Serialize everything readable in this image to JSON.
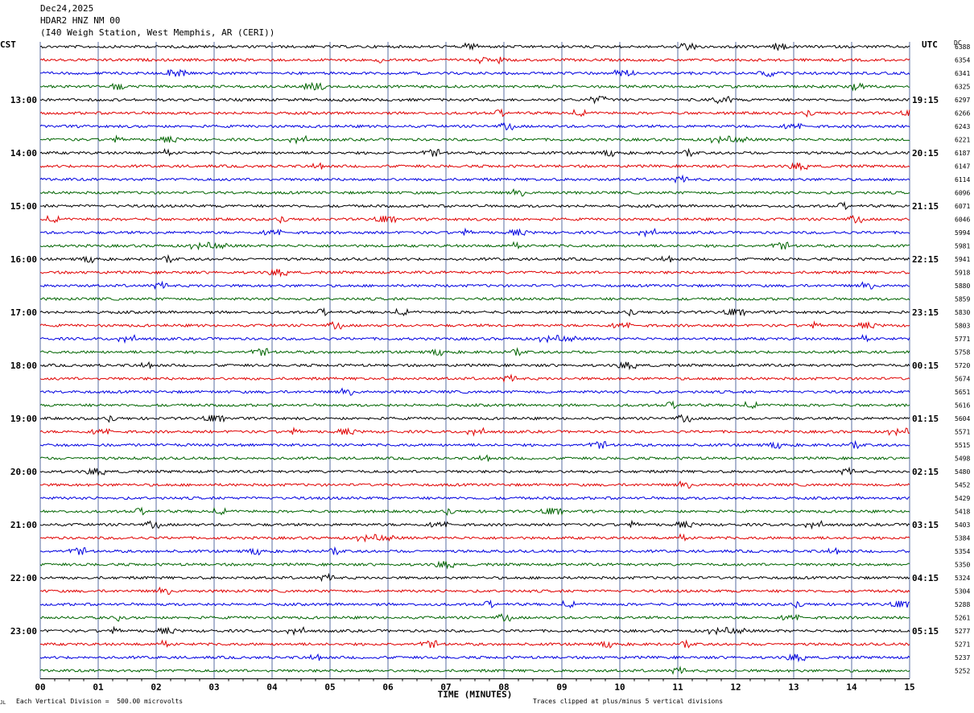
{
  "header": {
    "date": "Dec24,2025",
    "station": "HDAR2 HNZ NM 00",
    "location": "(I40 Weigh Station, West Memphis, AR (CERI))"
  },
  "left_tz": "CST",
  "right_tz": "UTC",
  "dc_label": "DC",
  "footer": {
    "scale_note": "Each Vertical Division =  500.00 microvolts",
    "clip_note": "Traces clipped at plus/minus 5 vertical divisions",
    "corner_mark": "JL"
  },
  "colors": {
    "trace_cycle": [
      "#000000",
      "#e00000",
      "#0000e0",
      "#006400"
    ],
    "grid": "#5a6ea0",
    "background": "#ffffff"
  },
  "chart_data": {
    "type": "line",
    "title": "HDAR2 HNZ NM 00",
    "xlabel": "TIME (MINUTES)",
    "x_ticks": [
      "00",
      "01",
      "02",
      "03",
      "04",
      "05",
      "06",
      "07",
      "08",
      "09",
      "10",
      "11",
      "12",
      "13",
      "14",
      "15"
    ],
    "xlim": [
      0,
      15
    ],
    "grid": true,
    "num_traces": 48,
    "left_hour_labels": [
      {
        "row": 4,
        "label": "13:00"
      },
      {
        "row": 8,
        "label": "14:00"
      },
      {
        "row": 12,
        "label": "15:00"
      },
      {
        "row": 16,
        "label": "16:00"
      },
      {
        "row": 20,
        "label": "17:00"
      },
      {
        "row": 24,
        "label": "18:00"
      },
      {
        "row": 28,
        "label": "19:00"
      },
      {
        "row": 32,
        "label": "20:00"
      },
      {
        "row": 36,
        "label": "21:00"
      },
      {
        "row": 40,
        "label": "22:00"
      },
      {
        "row": 44,
        "label": "23:00"
      }
    ],
    "right_hour_labels": [
      {
        "row": 4,
        "label": "19:15"
      },
      {
        "row": 8,
        "label": "20:15"
      },
      {
        "row": 12,
        "label": "21:15"
      },
      {
        "row": 16,
        "label": "22:15"
      },
      {
        "row": 20,
        "label": "23:15"
      },
      {
        "row": 24,
        "label": "00:15"
      },
      {
        "row": 28,
        "label": "01:15"
      },
      {
        "row": 32,
        "label": "02:15"
      },
      {
        "row": 36,
        "label": "03:15"
      },
      {
        "row": 40,
        "label": "04:15"
      },
      {
        "row": 44,
        "label": "05:15"
      }
    ],
    "dc_values": [
      "6388",
      "6354",
      "6341",
      "6325",
      "6297",
      "6266",
      "6243",
      "6221",
      "6187",
      "6147",
      "6114",
      "6096",
      "6071",
      "6046",
      "5994",
      "5981",
      "5941",
      "5918",
      "5880",
      "5859",
      "5830",
      "5803",
      "5771",
      "5758",
      "5720",
      "5674",
      "5651",
      "5616",
      "5604",
      "5571",
      "5515",
      "5498",
      "5480",
      "5452",
      "5429",
      "5418",
      "5403",
      "5384",
      "5354",
      "5350",
      "5324",
      "5304",
      "5288",
      "5261",
      "5277",
      "5271",
      "5237",
      "5252"
    ]
  }
}
